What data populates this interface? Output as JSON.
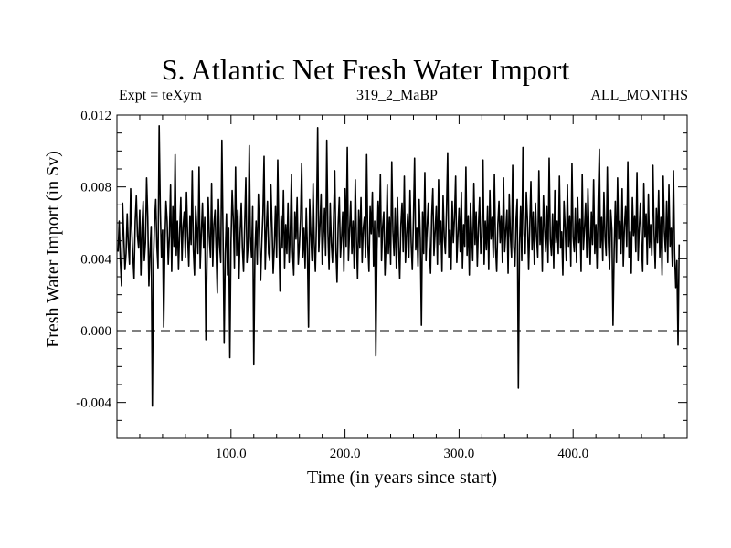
{
  "chart_data": {
    "type": "line",
    "title": "S. Atlantic Net Fresh Water Import",
    "subtitles": {
      "left": "Expt = teXym",
      "center": "319_2_MaBP",
      "right": "ALL_MONTHS"
    },
    "xlabel": "Time (in years since start)",
    "ylabel": "Fresh Water Import (in Sv)",
    "xlim": [
      0,
      500
    ],
    "ylim": [
      -0.006,
      0.012
    ],
    "x_ticks": [
      100,
      200,
      300,
      400
    ],
    "x_tick_labels": [
      "100.0",
      "200.0",
      "300.0",
      "400.0"
    ],
    "y_ticks": [
      -0.004,
      0.0,
      0.004,
      0.008,
      0.012
    ],
    "y_tick_labels": [
      "-0.004",
      "0.000",
      "0.004",
      "0.008",
      "0.012"
    ],
    "reference_line": {
      "y": 0.0,
      "style": "dashed"
    },
    "grid": false,
    "line_color": "#000000",
    "series": [
      {
        "x_start": 1,
        "x_step": 1,
        "values": [
          0.0044,
          0.0061,
          0.0038,
          0.0025,
          0.0071,
          0.0052,
          0.0034,
          0.0043,
          0.0065,
          0.0048,
          0.0037,
          0.0079,
          0.0056,
          0.0041,
          0.0029,
          0.0061,
          0.0075,
          0.0053,
          0.0046,
          0.0067,
          0.0031,
          0.0058,
          0.0072,
          0.0039,
          0.0049,
          0.0085,
          0.0063,
          0.0025,
          0.0044,
          0.0058,
          -0.0042,
          0.0039,
          0.0061,
          0.0073,
          0.0047,
          0.0035,
          0.0114,
          0.0068,
          0.0041,
          0.0056,
          0.0002,
          0.0048,
          0.0072,
          0.0061,
          0.0037,
          0.0053,
          0.0081,
          0.0033,
          0.0069,
          0.0047,
          0.0098,
          0.0042,
          0.0061,
          0.0034,
          0.0055,
          0.0074,
          0.0039,
          0.0058,
          0.0066,
          0.0041,
          0.0077,
          0.0052,
          0.0036,
          0.0064,
          0.0048,
          0.0089,
          0.0045,
          0.0031,
          0.0069,
          0.0057,
          0.0043,
          0.0091,
          0.0035,
          0.0054,
          0.0071,
          0.0046,
          0.0063,
          -0.0005,
          0.0039,
          0.0074,
          0.0052,
          0.0041,
          0.0082,
          0.0036,
          0.0059,
          0.0067,
          0.0044,
          0.0021,
          0.0073,
          0.0048,
          0.0038,
          0.0106,
          0.0055,
          -0.0007,
          0.0043,
          0.0065,
          0.0031,
          0.0057,
          -0.0015,
          0.0049,
          0.0078,
          0.0062,
          0.0035,
          0.0091,
          0.0042,
          0.0067,
          0.0029,
          0.0054,
          0.0071,
          0.0046,
          0.0033,
          0.0059,
          0.0085,
          0.0038,
          0.0047,
          0.0103,
          0.0052,
          0.0041,
          0.0069,
          -0.0019,
          0.0044,
          0.0061,
          0.0037,
          0.0076,
          0.0053,
          0.0028,
          0.0049,
          0.0065,
          0.0097,
          0.0034,
          0.0056,
          0.0072,
          0.0043,
          0.0039,
          0.0081,
          0.0058,
          0.0032,
          0.0047,
          0.0069,
          0.0041,
          0.0095,
          0.0053,
          0.0022,
          0.0064,
          0.0046,
          0.0078,
          0.0035,
          0.0059,
          0.0043,
          0.0071,
          0.0038,
          0.0055,
          0.0087,
          0.0044,
          0.0031,
          0.0066,
          0.0051,
          0.0074,
          0.0037,
          0.0048,
          0.0062,
          0.0093,
          0.0041,
          0.0057,
          0.0035,
          0.0068,
          0.0046,
          0.0002,
          0.0073,
          0.0054,
          0.0039,
          0.0082,
          0.0049,
          0.0033,
          0.0061,
          0.0113,
          0.0044,
          0.0058,
          0.0076,
          0.0037,
          0.0052,
          0.0068,
          0.0042,
          0.0106,
          0.0055,
          0.0034,
          0.0071,
          0.0049,
          0.0038,
          0.0063,
          0.0089,
          0.0045,
          0.0027,
          0.0059,
          0.0074,
          0.0041,
          0.0052,
          0.0066,
          0.0033,
          0.0079,
          0.0047,
          0.0102,
          0.0039,
          0.0056,
          0.0072,
          0.0043,
          0.0061,
          0.0035,
          0.0084,
          0.0051,
          0.0029,
          0.0067,
          0.0046,
          0.0074,
          0.0038,
          0.0057,
          0.0063,
          0.0041,
          0.0098,
          0.0048,
          0.0033,
          0.0069,
          0.0054,
          0.0077,
          0.0036,
          0.0061,
          -0.0014,
          0.0045,
          0.0072,
          0.0052,
          0.0087,
          0.0039,
          0.0058,
          0.0066,
          0.0031,
          0.0049,
          0.0081,
          0.0043,
          0.0063,
          0.0037,
          0.0094,
          0.0055,
          0.0042,
          0.0068,
          0.0035,
          0.0074,
          0.0047,
          0.0029,
          0.0059,
          0.0071,
          0.0044,
          0.0086,
          0.0038,
          0.0053,
          0.0065,
          0.0041,
          0.0078,
          0.0049,
          0.0034,
          0.0062,
          0.0096,
          0.0045,
          0.0057,
          0.0036,
          0.0073,
          0.0051,
          0.0003,
          0.0066,
          0.0043,
          0.0088,
          0.0039,
          0.0058,
          0.0071,
          0.0046,
          0.0032,
          0.0064,
          0.0079,
          0.0042,
          0.0055,
          0.0069,
          0.0037,
          0.0084,
          0.0048,
          0.0061,
          0.0033,
          0.0075,
          0.0052,
          0.0043,
          0.0067,
          0.0099,
          0.0041,
          0.0056,
          0.0034,
          0.0072,
          0.0049,
          0.0063,
          0.0086,
          0.0038,
          0.0053,
          0.0068,
          0.0044,
          0.0077,
          0.0035,
          0.0059,
          0.0047,
          0.0091,
          0.0042,
          0.0064,
          0.0031,
          0.0071,
          0.0055,
          0.0039,
          0.0082,
          0.0048,
          0.0066,
          0.0036,
          0.0058,
          0.0074,
          0.0043,
          0.0052,
          0.0095,
          0.0037,
          0.0061,
          0.0045,
          0.0069,
          0.0034,
          0.0078,
          0.0051,
          0.0063,
          0.0041,
          0.0087,
          0.0046,
          0.0033,
          0.0059,
          0.0072,
          0.0049,
          0.0064,
          0.0038,
          0.0085,
          0.0044,
          0.0056,
          0.0067,
          0.0032,
          0.0076,
          0.0053,
          0.0041,
          0.0092,
          0.0047,
          0.0036,
          0.0062,
          0.0073,
          -0.0032,
          0.0048,
          0.0069,
          0.0039,
          0.0102,
          0.0054,
          0.0043,
          0.0077,
          0.0061,
          0.0034,
          0.0058,
          0.0083,
          0.0045,
          0.0066,
          0.0037,
          0.0071,
          0.0052,
          0.0041,
          0.0089,
          0.0048,
          0.0063,
          0.0033,
          0.0075,
          0.0057,
          0.0044,
          0.0069,
          0.0038,
          0.0096,
          0.0051,
          0.0042,
          0.0065,
          0.0035,
          0.0078,
          0.0049,
          0.0061,
          0.0043,
          0.0086,
          0.0046,
          0.0055,
          0.0031,
          0.0072,
          0.0058,
          0.0039,
          0.0081,
          0.0047,
          0.0064,
          0.0036,
          0.0093,
          0.0052,
          0.0044,
          0.0068,
          0.0038,
          0.0074,
          0.0049,
          0.0062,
          0.0033,
          0.0087,
          0.0045,
          0.0057,
          0.0071,
          0.0041,
          0.0079,
          0.0054,
          0.0037,
          0.0066,
          0.0048,
          0.0084,
          0.0043,
          0.0059,
          0.0035,
          0.0073,
          0.0101,
          0.0046,
          0.0063,
          0.0039,
          0.0077,
          0.0052,
          0.0042,
          0.0091,
          0.0049,
          0.0034,
          0.0067,
          0.0056,
          0.0003,
          0.0045,
          0.0072,
          0.0038,
          0.0085,
          0.0051,
          0.0061,
          0.0043,
          0.0079,
          0.0036,
          0.0058,
          0.0069,
          0.0047,
          0.0094,
          0.0041,
          0.0055,
          0.0032,
          0.0074,
          0.0053,
          0.0064,
          0.0044,
          0.0088,
          0.0039,
          0.0057,
          0.0071,
          0.0048,
          0.0033,
          0.0082,
          0.0052,
          0.0065,
          0.0037,
          0.0076,
          0.0046,
          0.0059,
          0.0042,
          0.0092,
          0.0054,
          0.0035,
          0.0068,
          0.0049,
          0.0078,
          0.0041,
          0.0063,
          0.0031,
          0.0086,
          0.0055,
          0.0044,
          0.0072,
          0.0038,
          0.0081,
          0.0047,
          0.0057,
          0.0036,
          0.0089,
          0.0043,
          0.0024,
          0.0039,
          -0.0008,
          0.0048
        ]
      }
    ]
  }
}
